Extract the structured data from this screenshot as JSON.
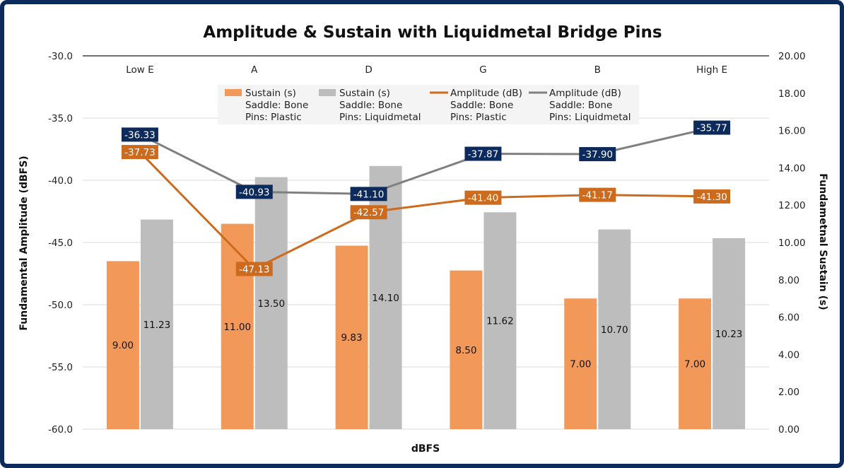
{
  "chart_data": {
    "type": "bar",
    "title": "Amplitude & Sustain with Liquidmetal Bridge Pins",
    "xlabel": "dBFS",
    "ylabel_left": "Fundamental Amplitude (dBFS)",
    "ylabel_right": "Fundametnal Sustain (s)",
    "categories": [
      "Low E",
      "A",
      "D",
      "G",
      "B",
      "High E"
    ],
    "y_left": {
      "min": -60.0,
      "max": -30.0,
      "step": 5.0,
      "ticks": [
        "-30.0",
        "-35.0",
        "-40.0",
        "-45.0",
        "-50.0",
        "-55.0",
        "-60.0"
      ]
    },
    "y_right": {
      "min": 0.0,
      "max": 20.0,
      "step": 2.0,
      "ticks": [
        "20.00",
        "18.00",
        "16.00",
        "14.00",
        "12.00",
        "10.00",
        "8.00",
        "6.00",
        "4.00",
        "2.00",
        "0.00"
      ]
    },
    "bar_series": [
      {
        "name": "Sustain (s)",
        "line2": "Saddle: Bone",
        "line3": "Pins: Plastic",
        "color": "#f2995a",
        "values": [
          9.0,
          11.0,
          9.83,
          8.5,
          7.0,
          7.0
        ],
        "labels": [
          "9.00",
          "11.00",
          "9.83",
          "8.50",
          "7.00",
          "7.00"
        ]
      },
      {
        "name": "Sustain (s)",
        "line2": "Saddle: Bone",
        "line3": "Pins: Liquidmetal",
        "color": "#bdbdbd",
        "values": [
          11.23,
          13.5,
          14.1,
          11.62,
          10.7,
          10.23
        ],
        "labels": [
          "11.23",
          "13.50",
          "14.10",
          "11.62",
          "10.70",
          "10.23"
        ]
      }
    ],
    "line_series": [
      {
        "name": "Amplitude (dB)",
        "line2": "Saddle: Bone",
        "line3": "Pins: Plastic",
        "color": "#cc6a1e",
        "values": [
          -37.73,
          -47.13,
          -42.57,
          -41.4,
          -41.17,
          -41.3
        ],
        "labels": [
          "-37.73",
          "-47.13",
          "-42.57",
          "-41.40",
          "-41.17",
          "-41.30"
        ]
      },
      {
        "name": "Amplitude (dB)",
        "line2": "Saddle: Bone",
        "line3": "Pins: Liquidmetal",
        "color": "#808080",
        "label_bg": "#0d2a5c",
        "values": [
          -36.33,
          -40.93,
          -41.1,
          -37.87,
          -37.9,
          -35.77
        ],
        "labels": [
          "-36.33",
          "-40.93",
          "-41.10",
          "-37.87",
          "-37.90",
          "-35.77"
        ]
      }
    ],
    "grid": true,
    "legend_position": "top-center"
  },
  "colors": {
    "frame": "#0d2a5c",
    "grid": "#d9d9d9",
    "axis": "#404040"
  }
}
